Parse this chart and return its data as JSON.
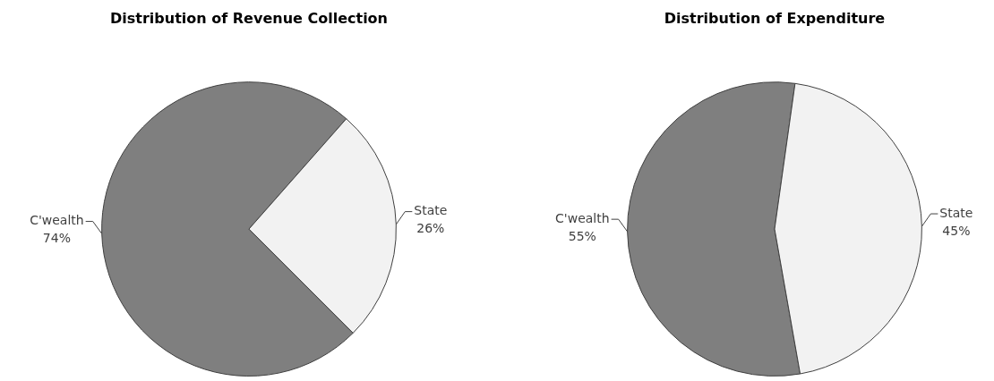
{
  "chart_data": [
    {
      "type": "pie",
      "title": "Distribution of Revenue Collection",
      "categories": [
        "C'wealth",
        "State"
      ],
      "values": [
        74,
        26
      ],
      "colors": [
        "#7f7f7f",
        "#f2f2f2"
      ],
      "value_labels": [
        "74%",
        "26%"
      ],
      "legend": false
    },
    {
      "type": "pie",
      "title": "Distribution of Expenditure",
      "categories": [
        "C'wealth",
        "State"
      ],
      "values": [
        55,
        45
      ],
      "colors": [
        "#7f7f7f",
        "#f2f2f2"
      ],
      "value_labels": [
        "55%",
        "45%"
      ],
      "legend": false
    }
  ]
}
